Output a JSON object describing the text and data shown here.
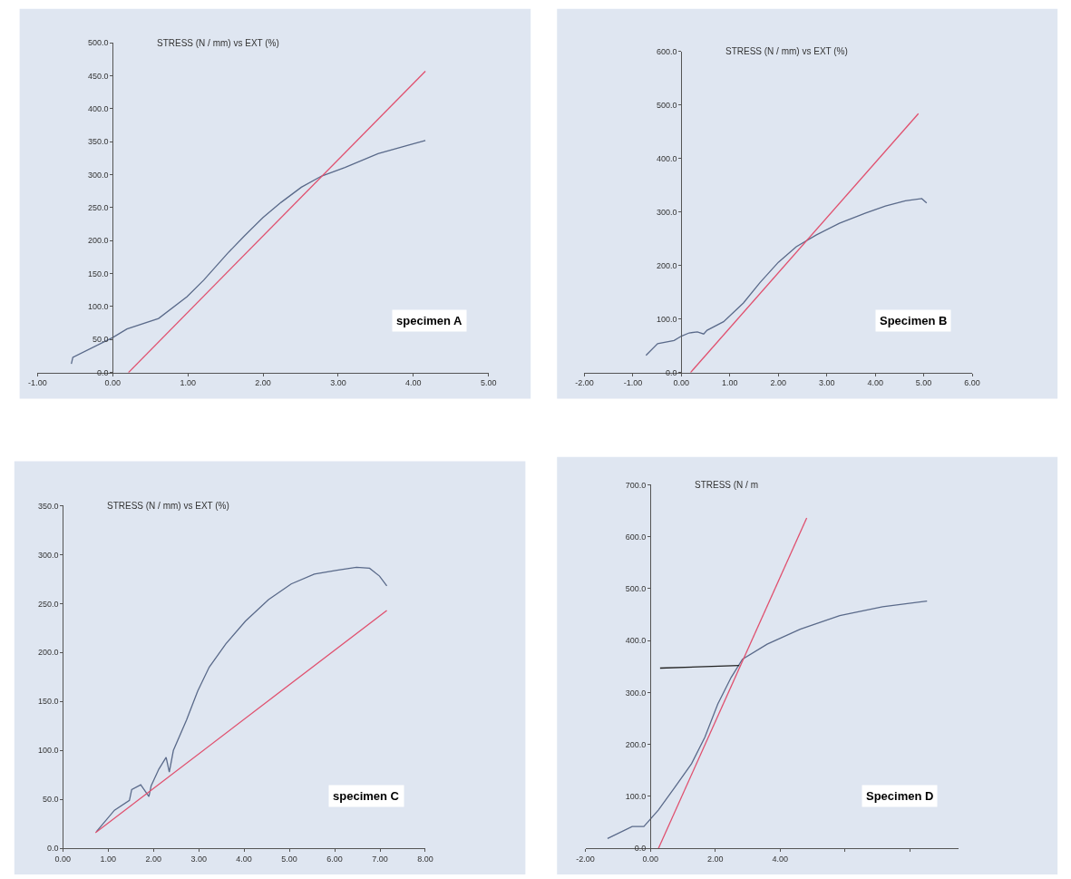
{
  "chart_data": [
    {
      "type": "line",
      "title": "STRESS (N / mm) vs EXT (%)",
      "annotations": [
        "specimen A"
      ],
      "xlim": [
        -1,
        5
      ],
      "ylim": [
        0,
        500
      ],
      "xticks": [
        {
          "value": -1,
          "label": "-1.00"
        },
        {
          "value": 0,
          "label": "0.00"
        },
        {
          "value": 1,
          "label": "1.00"
        },
        {
          "value": 2,
          "label": "2.00"
        },
        {
          "value": 3,
          "label": "3.00"
        },
        {
          "value": 4,
          "label": "4.00"
        },
        {
          "value": 5,
          "label": "5.00"
        }
      ],
      "yticks": [
        {
          "value": 0,
          "label": "0.0"
        },
        {
          "value": 50,
          "label": "50.0"
        },
        {
          "value": 100,
          "label": "100.0"
        },
        {
          "value": 150,
          "label": "150.0"
        },
        {
          "value": 200,
          "label": "200.0"
        },
        {
          "value": 250,
          "label": "250.0"
        },
        {
          "value": 300,
          "label": "300.0"
        },
        {
          "value": 350,
          "label": "350.0"
        },
        {
          "value": 400,
          "label": "400.0"
        },
        {
          "value": 450,
          "label": "450.0"
        },
        {
          "value": 500,
          "label": "500.0"
        }
      ],
      "series": [
        {
          "color": "#5a6a8a",
          "x": [
            -0.55,
            -0.53,
            0,
            0.19,
            0.61,
            0.99,
            1.21,
            1.53,
            1.75,
            2,
            2.24,
            2.51,
            2.78,
            3.09,
            3.53,
            3.94,
            4.16
          ],
          "values": [
            13,
            23,
            53,
            66,
            82,
            115,
            140,
            181,
            207,
            235,
            258,
            281,
            298,
            311,
            332,
            345,
            352
          ]
        },
        {
          "color": "#e0506e",
          "x": [
            0.21,
            4.16
          ],
          "values": [
            0,
            457
          ]
        }
      ]
    },
    {
      "type": "line",
      "title": "STRESS (N / mm) vs EXT (%)",
      "annotations": [
        "Specimen B"
      ],
      "xlim": [
        -2,
        6
      ],
      "ylim": [
        0,
        600
      ],
      "xticks": [
        {
          "value": -2,
          "label": "-2.00"
        },
        {
          "value": -1,
          "label": "-1.00"
        },
        {
          "value": 0,
          "label": "0.00"
        },
        {
          "value": 1,
          "label": "1.00"
        },
        {
          "value": 2,
          "label": "2.00"
        },
        {
          "value": 3,
          "label": "3.00"
        },
        {
          "value": 4,
          "label": "4.00"
        },
        {
          "value": 5,
          "label": "5.00"
        },
        {
          "value": 6,
          "label": "6.00"
        }
      ],
      "yticks": [
        {
          "value": 0,
          "label": "0.0"
        },
        {
          "value": 100,
          "label": "100.0"
        },
        {
          "value": 200,
          "label": "200.0"
        },
        {
          "value": 300,
          "label": "300.0"
        },
        {
          "value": 400,
          "label": "400.0"
        },
        {
          "value": 500,
          "label": "500.0"
        },
        {
          "value": 600,
          "label": "600.0"
        }
      ],
      "series": [
        {
          "color": "#5a6a8a",
          "x": [
            -0.73,
            -0.49,
            -0.15,
            0,
            0.16,
            0.33,
            0.46,
            0.53,
            0.87,
            1.28,
            1.62,
            2,
            2.37,
            2.78,
            3.26,
            3.8,
            4.21,
            4.62,
            4.96,
            5.06
          ],
          "values": [
            32,
            54,
            60,
            68,
            74,
            76,
            72,
            79,
            95,
            130,
            168,
            206,
            235,
            257,
            279,
            298,
            311,
            321,
            325,
            317
          ]
        },
        {
          "color": "#e0506e",
          "x": [
            0.19,
            4.89
          ],
          "values": [
            0,
            484
          ]
        }
      ]
    },
    {
      "type": "line",
      "title": "STRESS (N / mm) vs EXT (%)",
      "annotations": [
        "specimen C"
      ],
      "xlim": [
        0,
        8
      ],
      "ylim": [
        0,
        350
      ],
      "xticks": [
        {
          "value": 0,
          "label": "0.00"
        },
        {
          "value": 1,
          "label": "1.00"
        },
        {
          "value": 2,
          "label": "2.00"
        },
        {
          "value": 3,
          "label": "3.00"
        },
        {
          "value": 4,
          "label": "4.00"
        },
        {
          "value": 5,
          "label": "5.00"
        },
        {
          "value": 6,
          "label": "6.00"
        },
        {
          "value": 7,
          "label": "7.00"
        },
        {
          "value": 8,
          "label": "8.00"
        }
      ],
      "yticks": [
        {
          "value": 0,
          "label": "0.0"
        },
        {
          "value": 50,
          "label": "50.0"
        },
        {
          "value": 100,
          "label": "100.0"
        },
        {
          "value": 150,
          "label": "150.0"
        },
        {
          "value": 200,
          "label": "200.0"
        },
        {
          "value": 250,
          "label": "250.0"
        },
        {
          "value": 300,
          "label": "300.0"
        },
        {
          "value": 350,
          "label": "350.0"
        }
      ],
      "series": [
        {
          "color": "#5a6a8a",
          "x": [
            0.74,
            1.14,
            1.47,
            1.52,
            1.72,
            1.9,
            1.95,
            2.12,
            2.28,
            2.35,
            2.44,
            2.73,
            2.98,
            3.23,
            3.6,
            4.03,
            4.54,
            5.04,
            5.55,
            6.05,
            6.48,
            6.77,
            6.99,
            7.15
          ],
          "values": [
            17,
            39,
            49,
            60,
            65,
            53,
            64,
            81,
            93,
            78,
            100,
            131,
            161,
            185,
            209,
            232,
            254,
            270,
            280,
            284,
            287,
            286,
            278,
            268
          ]
        },
        {
          "color": "#e0506e",
          "x": [
            0.72,
            7.15
          ],
          "values": [
            16,
            243
          ]
        }
      ]
    },
    {
      "type": "line",
      "title": "STRESS (N / m",
      "annotations": [
        "Specimen D"
      ],
      "xlim": [
        -2,
        9.5
      ],
      "ylim": [
        0,
        700
      ],
      "xticks": [
        {
          "value": -2,
          "label": "-2.00"
        },
        {
          "value": 0,
          "label": "0.00"
        },
        {
          "value": 2,
          "label": "2.00"
        },
        {
          "value": 4,
          "label": "4.00"
        },
        {
          "value": 6,
          "label": null
        },
        {
          "value": 8,
          "label": null
        }
      ],
      "yticks": [
        {
          "value": 0,
          "label": "0.0"
        },
        {
          "value": 100,
          "label": "100.0"
        },
        {
          "value": 200,
          "label": "200.0"
        },
        {
          "value": 300,
          "label": "300.0"
        },
        {
          "value": 400,
          "label": "400.0"
        },
        {
          "value": 500,
          "label": "500.0"
        },
        {
          "value": 600,
          "label": "600.0"
        },
        {
          "value": 700,
          "label": "700.0"
        }
      ],
      "series": [
        {
          "color": "#5a6a8a",
          "x": [
            -1.32,
            -0.56,
            -0.2,
            0.25,
            0.76,
            1.27,
            1.68,
            2.08,
            2.49,
            2.84,
            3.6,
            4.62,
            5.84,
            7.16,
            8.53
          ],
          "values": [
            19,
            42,
            42,
            74,
            118,
            163,
            214,
            278,
            329,
            364,
            393,
            422,
            448,
            465,
            476
          ]
        },
        {
          "color": "#e0506e",
          "x": [
            0.25,
            4.82
          ],
          "values": [
            0,
            636
          ]
        },
        {
          "color": "#222222",
          "x": [
            0.3,
            2.74
          ],
          "values": [
            347,
            352
          ]
        }
      ]
    }
  ]
}
